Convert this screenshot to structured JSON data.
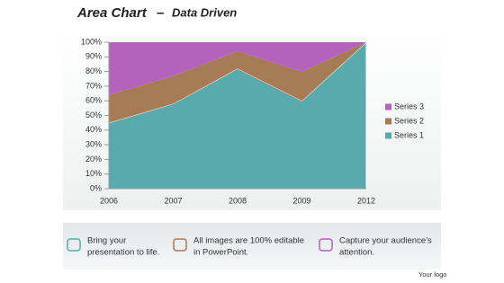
{
  "chart_data": {
    "type": "stacked_area",
    "title": "Area Chart",
    "subtitle": "Data Driven",
    "categories": [
      "2006",
      "2007",
      "2008",
      "2009",
      "2012"
    ],
    "series": [
      {
        "name": "Series 1",
        "color": "#5aa9ad",
        "values": [
          45,
          58,
          82,
          60,
          100
        ]
      },
      {
        "name": "Series 2",
        "color": "#a67b55",
        "values": [
          19,
          19,
          12,
          20,
          0
        ]
      },
      {
        "name": "Series 3",
        "color": "#b263bb",
        "values": [
          36,
          23,
          6,
          20,
          0
        ]
      }
    ],
    "ylim": [
      0,
      100
    ],
    "yticks": [
      {
        "value": 0,
        "label": "0%"
      },
      {
        "value": 10,
        "label": "10%"
      },
      {
        "value": 20,
        "label": "20%"
      },
      {
        "value": 30,
        "label": "30%"
      },
      {
        "value": 40,
        "label": "40%"
      },
      {
        "value": 50,
        "label": "50%"
      },
      {
        "value": 60,
        "label": "60%"
      },
      {
        "value": 70,
        "label": "70%"
      },
      {
        "value": 80,
        "label": "80%"
      },
      {
        "value": 90,
        "label": "90%"
      },
      {
        "value": 100,
        "label": "100%"
      }
    ],
    "legend": "right"
  },
  "footer": {
    "items": [
      {
        "lines": [
          "Bring your",
          "presentation to life."
        ]
      },
      {
        "lines": [
          "All images are 100% editable",
          "in PowerPoint."
        ]
      },
      {
        "lines": [
          "Capture your audience’s",
          "attention."
        ]
      }
    ],
    "logo": "Your logo"
  }
}
